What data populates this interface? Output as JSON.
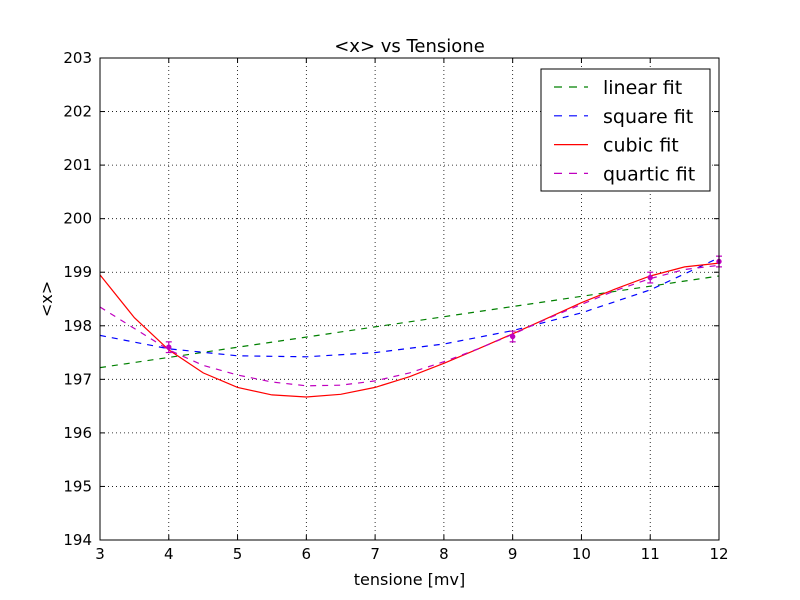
{
  "chart_data": {
    "type": "line",
    "title": "<x> vs Tensione",
    "xlabel": "tensione [mv]",
    "ylabel": "<x>",
    "xlim": [
      3,
      12
    ],
    "ylim": [
      194,
      203
    ],
    "xticks": [
      3,
      4,
      5,
      6,
      7,
      8,
      9,
      10,
      11,
      12
    ],
    "yticks": [
      194,
      195,
      196,
      197,
      198,
      199,
      200,
      201,
      202,
      203
    ],
    "grid": true,
    "legend_position": "top-right",
    "points": {
      "x": [
        4,
        9,
        11,
        12
      ],
      "y": [
        197.6,
        197.8,
        198.9,
        199.2
      ],
      "yerr": [
        0.1,
        0.1,
        0.1,
        0.1
      ],
      "color": "#bf00bf"
    },
    "series": [
      {
        "name": "linear fit",
        "color": "#008000",
        "dash": "dashed",
        "x": [
          3,
          12
        ],
        "y": [
          197.22,
          198.93
        ]
      },
      {
        "name": "square fit",
        "color": "#0000ff",
        "dash": "dashed",
        "x": [
          3,
          4,
          5,
          6,
          7,
          8,
          9,
          10,
          11,
          12
        ],
        "y": [
          197.82,
          197.57,
          197.44,
          197.42,
          197.5,
          197.66,
          197.91,
          198.24,
          198.67,
          199.27
        ]
      },
      {
        "name": "cubic fit",
        "color": "#ff0000",
        "dash": "solid",
        "x": [
          3,
          3.5,
          4,
          4.5,
          5,
          5.5,
          6,
          6.5,
          7,
          7.5,
          8,
          8.5,
          9,
          9.5,
          10,
          10.5,
          11,
          11.5,
          12
        ],
        "y": [
          198.95,
          198.15,
          197.55,
          197.12,
          196.85,
          196.71,
          196.67,
          196.72,
          196.85,
          197.05,
          197.3,
          197.57,
          197.85,
          198.14,
          198.43,
          198.69,
          198.93,
          199.1,
          199.17
        ]
      },
      {
        "name": "quartic fit",
        "color": "#bf00bf",
        "dash": "dashed",
        "x": [
          3,
          3.5,
          4,
          4.5,
          5,
          5.5,
          6,
          6.5,
          7,
          7.5,
          8,
          8.5,
          9,
          9.5,
          10,
          10.5,
          11,
          11.5,
          12
        ],
        "y": [
          198.35,
          197.95,
          197.55,
          197.26,
          197.08,
          196.95,
          196.88,
          196.89,
          196.97,
          197.12,
          197.33,
          197.57,
          197.84,
          198.13,
          198.4,
          198.66,
          198.88,
          199.05,
          199.13
        ]
      }
    ]
  }
}
